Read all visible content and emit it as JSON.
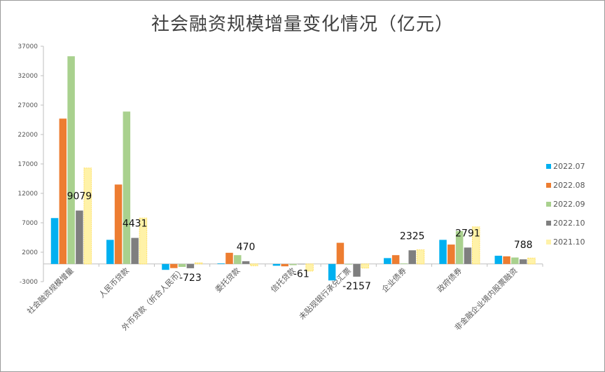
{
  "chart_data": {
    "type": "bar",
    "title": "社会融资规模增量变化情况（亿元）",
    "ylim": [
      -3000,
      37000
    ],
    "yticks": [
      -3000,
      2000,
      7000,
      12000,
      17000,
      22000,
      27000,
      32000,
      37000
    ],
    "grid": false,
    "legend_position": "right",
    "categories": [
      "社会融资规模增量",
      "人民币贷款",
      "外币贷款（折合人民币）",
      "委托贷款",
      "信托贷款",
      "未贴现银行承兑汇票",
      "企业债券",
      "政府债券",
      "非金融企业境内股票融资"
    ],
    "series": [
      {
        "name": "2022.07",
        "color": "#00b0f0",
        "values": [
          7800,
          4100,
          -1000,
          100,
          -300,
          -2800,
          1000,
          4100,
          1400
        ]
      },
      {
        "name": "2022.08",
        "color": "#ed7d31",
        "values": [
          24700,
          13500,
          -700,
          1900,
          -400,
          3600,
          1500,
          3300,
          1300
        ]
      },
      {
        "name": "2022.09",
        "color": "#a9d18e",
        "values": [
          35300,
          25900,
          -500,
          1500,
          -200,
          -100,
          100,
          5600,
          1100
        ]
      },
      {
        "name": "2022.10",
        "color": "#7f7f7f",
        "values": [
          9079,
          4431,
          -723,
          470,
          -61,
          -2157,
          2325,
          2791,
          788
        ]
      },
      {
        "name": "2021.10",
        "color": "#fff2a8",
        "values": [
          16300,
          7800,
          200,
          -300,
          -1200,
          -700,
          2400,
          6300,
          1000
        ]
      }
    ],
    "data_labels": {
      "series": "2022.10",
      "labels": [
        "9079",
        "4431",
        "-723",
        "470",
        "-61",
        "-2157",
        "2325",
        "2791",
        "788"
      ]
    }
  }
}
